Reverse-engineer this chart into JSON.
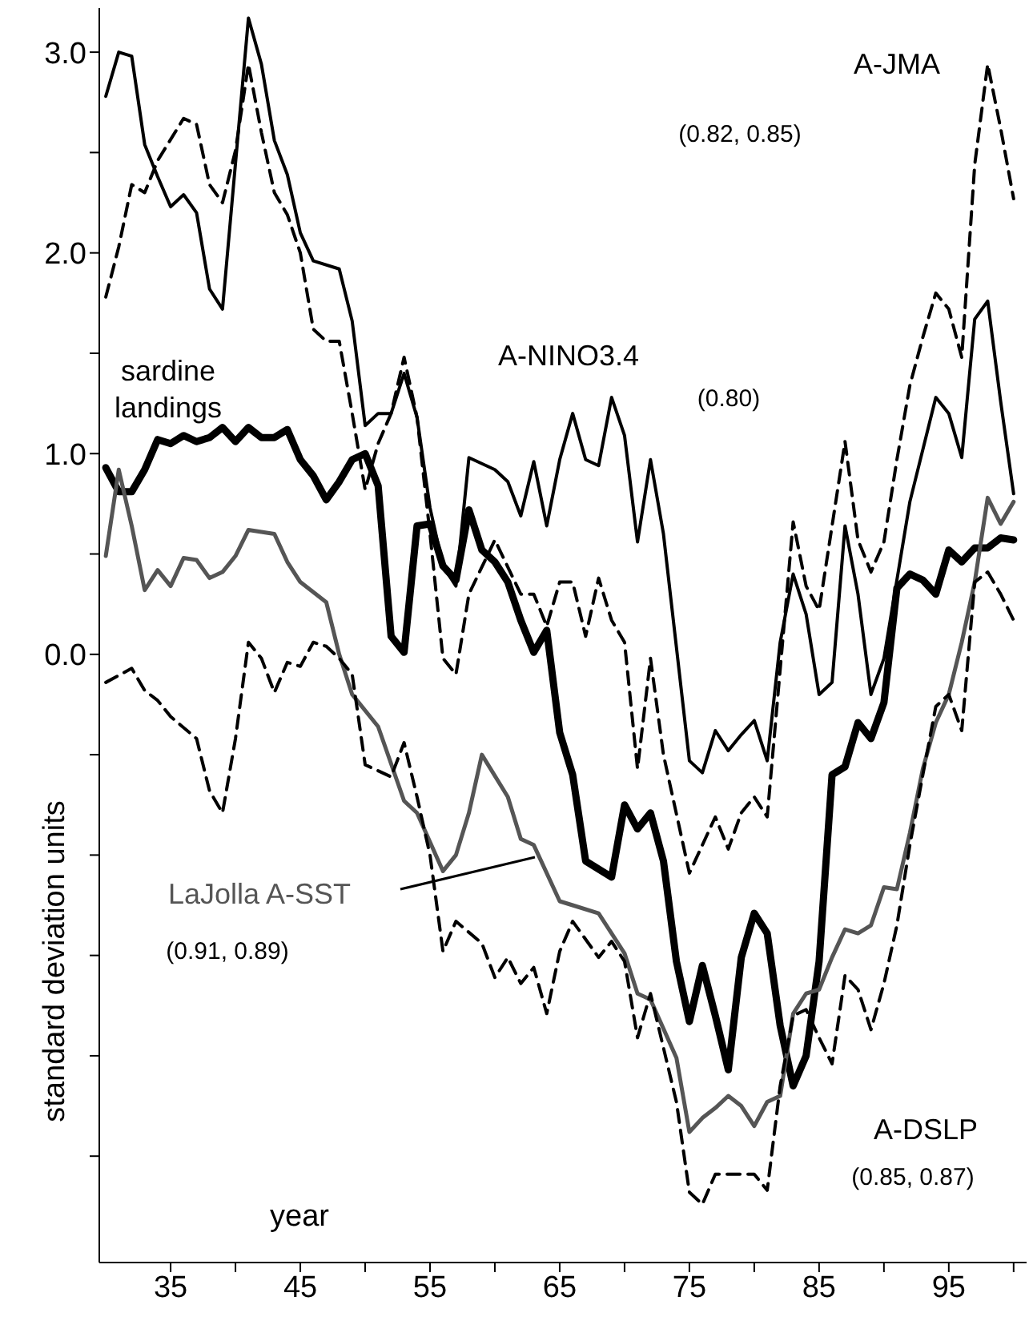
{
  "chart_data": {
    "type": "line",
    "xlabel": "year",
    "ylabel": "standard deviation units",
    "xlim": [
      29.5,
      101
    ],
    "ylim": [
      -3.03,
      3.22
    ],
    "xticks": [
      {
        "value": 35,
        "label": "35"
      },
      {
        "value": 40,
        "label": null
      },
      {
        "value": 45,
        "label": "45"
      },
      {
        "value": 50,
        "label": null
      },
      {
        "value": 55,
        "label": "55"
      },
      {
        "value": 60,
        "label": null
      },
      {
        "value": 65,
        "label": "65"
      },
      {
        "value": 70,
        "label": null
      },
      {
        "value": 75,
        "label": "75"
      },
      {
        "value": 80,
        "label": null
      },
      {
        "value": 85,
        "label": "85"
      },
      {
        "value": 90,
        "label": null
      },
      {
        "value": 95,
        "label": "95"
      },
      {
        "value": 100,
        "label": null
      }
    ],
    "yticks": [
      {
        "value": -2.5,
        "label": null
      },
      {
        "value": -2,
        "label": null
      },
      {
        "value": -1.5,
        "label": null
      },
      {
        "value": -1,
        "label": null
      },
      {
        "value": -0.5,
        "label": null
      },
      {
        "value": 0,
        "label": "0.0"
      },
      {
        "value": 0.5,
        "label": null
      },
      {
        "value": 1,
        "label": "1.0"
      },
      {
        "value": 1.5,
        "label": null
      },
      {
        "value": 2,
        "label": "2.0"
      },
      {
        "value": 2.5,
        "label": null
      },
      {
        "value": 3,
        "label": "3.0"
      }
    ],
    "legend": false,
    "marker": "none",
    "series": [
      {
        "name": "A-JMA",
        "color": "#000000",
        "line_style": "dashed",
        "x": [
          30,
          31,
          32,
          33,
          34,
          36,
          37,
          38,
          39,
          40,
          41,
          42,
          43,
          44,
          45,
          46,
          47,
          48,
          49,
          50,
          51,
          52,
          53,
          54,
          55,
          56,
          57,
          58,
          60,
          62,
          63,
          64,
          65,
          66,
          67,
          68,
          69,
          70,
          71,
          72,
          73,
          75,
          76,
          77,
          78,
          79,
          80,
          81,
          83,
          84,
          85,
          87,
          88,
          89,
          90,
          91,
          92,
          93,
          94,
          95,
          96,
          97,
          98,
          99,
          100
        ],
        "values": [
          1.78,
          2.03,
          2.34,
          2.3,
          2.46,
          2.67,
          2.64,
          2.34,
          2.25,
          2.51,
          2.94,
          2.6,
          2.3,
          2.19,
          2.0,
          1.62,
          1.56,
          1.56,
          1.2,
          0.82,
          1.05,
          1.2,
          1.48,
          1.18,
          0.6,
          -0.02,
          -0.1,
          0.3,
          0.57,
          0.3,
          0.3,
          0.14,
          0.36,
          0.36,
          0.09,
          0.38,
          0.17,
          0.06,
          -0.57,
          -0.02,
          -0.5,
          -1.09,
          -0.95,
          -0.81,
          -0.97,
          -0.79,
          -0.71,
          -0.81,
          0.66,
          0.34,
          0.22,
          1.06,
          0.57,
          0.41,
          0.56,
          0.97,
          1.34,
          1.58,
          1.8,
          1.72,
          1.48,
          2.44,
          2.94,
          2.62,
          2.27
        ]
      },
      {
        "name": "A-NINO3.4",
        "color": "#000000",
        "line_style": "solid",
        "x": [
          30,
          31,
          32,
          33,
          34,
          35,
          36,
          37,
          38,
          39,
          41,
          42,
          43,
          44,
          45,
          46,
          48,
          49,
          50,
          51,
          52,
          53,
          54,
          55,
          56,
          57,
          58,
          60,
          61,
          62,
          63,
          64,
          65,
          66,
          67,
          68,
          69,
          70,
          71,
          72,
          73,
          75,
          76,
          77,
          78,
          79,
          80,
          81,
          82,
          83,
          84,
          85,
          86,
          87,
          88,
          89,
          90,
          92,
          94,
          95,
          96,
          97,
          98,
          99,
          100
        ],
        "values": [
          2.78,
          3.0,
          2.98,
          2.54,
          2.38,
          2.23,
          2.29,
          2.2,
          1.82,
          1.72,
          3.17,
          2.94,
          2.56,
          2.39,
          2.1,
          1.96,
          1.92,
          1.66,
          1.14,
          1.2,
          1.2,
          1.4,
          1.18,
          0.73,
          0.44,
          0.34,
          0.98,
          0.92,
          0.86,
          0.69,
          0.96,
          0.64,
          0.97,
          1.2,
          0.97,
          0.94,
          1.28,
          1.09,
          0.56,
          0.97,
          0.6,
          -0.53,
          -0.59,
          -0.38,
          -0.48,
          -0.4,
          -0.33,
          -0.53,
          0.06,
          0.4,
          0.2,
          -0.2,
          -0.14,
          0.64,
          0.3,
          -0.2,
          -0.02,
          0.76,
          1.28,
          1.2,
          0.98,
          1.67,
          1.76,
          1.26,
          0.8
        ]
      },
      {
        "name": "sardine landings",
        "color": "#000000",
        "line_style": "solid",
        "x": [
          30,
          31,
          32,
          33,
          34,
          35,
          36,
          37,
          38,
          39,
          40,
          41,
          42,
          43,
          44,
          45,
          46,
          47,
          48,
          49,
          50,
          51,
          52,
          53,
          54,
          55,
          56,
          57,
          58,
          59,
          60,
          61,
          62,
          63,
          64,
          65,
          66,
          67,
          69,
          70,
          71,
          72,
          73,
          74,
          75,
          76,
          77,
          78,
          79,
          80,
          81,
          82,
          83,
          84,
          85,
          86,
          87,
          88,
          89,
          90,
          91,
          92,
          93,
          94,
          95,
          96,
          97,
          98,
          99,
          100
        ],
        "values": [
          0.93,
          0.81,
          0.81,
          0.92,
          1.07,
          1.05,
          1.09,
          1.06,
          1.08,
          1.13,
          1.06,
          1.13,
          1.08,
          1.08,
          1.12,
          0.97,
          0.89,
          0.77,
          0.86,
          0.97,
          1.0,
          0.84,
          0.09,
          0.01,
          0.64,
          0.65,
          0.44,
          0.37,
          0.72,
          0.52,
          0.46,
          0.36,
          0.17,
          0.01,
          0.12,
          -0.39,
          -0.6,
          -1.03,
          -1.11,
          -0.75,
          -0.87,
          -0.79,
          -1.03,
          -1.53,
          -1.83,
          -1.55,
          -1.8,
          -2.07,
          -1.51,
          -1.29,
          -1.39,
          -1.85,
          -2.15,
          -2.0,
          -1.53,
          -0.6,
          -0.56,
          -0.34,
          -0.42,
          -0.24,
          0.33,
          0.4,
          0.37,
          0.3,
          0.52,
          0.46,
          0.53,
          0.53,
          0.58,
          0.57
        ]
      },
      {
        "name": "LaJolla A-SST",
        "color": "#555555",
        "line_style": "solid",
        "x": [
          30,
          31,
          32,
          33,
          34,
          35,
          36,
          37,
          38,
          39,
          40,
          41,
          42,
          43,
          44,
          45,
          47,
          48,
          49,
          51,
          53,
          54,
          56,
          57,
          58,
          59,
          61,
          62,
          63,
          65,
          66,
          68,
          69,
          70,
          71,
          72,
          74,
          75,
          76,
          77,
          78,
          79,
          80,
          81,
          82,
          83,
          84,
          85,
          86,
          87,
          88,
          89,
          90,
          91,
          92,
          93,
          94,
          95,
          96,
          97,
          98,
          99,
          100
        ],
        "values": [
          0.49,
          0.92,
          0.64,
          0.32,
          0.42,
          0.34,
          0.48,
          0.47,
          0.38,
          0.41,
          0.49,
          0.62,
          0.61,
          0.6,
          0.46,
          0.36,
          0.26,
          0.0,
          -0.2,
          -0.36,
          -0.73,
          -0.79,
          -1.08,
          -1.0,
          -0.79,
          -0.5,
          -0.71,
          -0.92,
          -0.95,
          -1.23,
          -1.25,
          -1.29,
          -1.39,
          -1.49,
          -1.69,
          -1.72,
          -2.01,
          -2.38,
          -2.31,
          -2.26,
          -2.2,
          -2.25,
          -2.35,
          -2.23,
          -2.2,
          -1.79,
          -1.69,
          -1.67,
          -1.51,
          -1.37,
          -1.39,
          -1.35,
          -1.16,
          -1.17,
          -0.89,
          -0.57,
          -0.34,
          -0.2,
          0.06,
          0.36,
          0.78,
          0.65,
          0.76
        ]
      },
      {
        "name": "A-DSLP",
        "color": "#000000",
        "line_style": "dashed",
        "x": [
          30,
          32,
          33,
          34,
          35,
          37,
          38,
          39,
          40,
          41,
          42,
          43,
          44,
          45,
          46,
          47,
          48,
          49,
          50,
          52,
          53,
          54,
          55,
          56,
          57,
          59,
          60,
          61,
          62,
          63,
          64,
          65,
          66,
          68,
          69,
          70,
          71,
          72,
          74,
          75,
          76,
          77,
          78,
          79,
          80,
          81,
          82,
          83,
          84,
          85,
          86,
          87,
          88,
          89,
          90,
          91,
          92,
          93,
          94,
          95,
          96,
          97,
          98,
          99,
          100
        ],
        "values": [
          -0.14,
          -0.07,
          -0.18,
          -0.23,
          -0.31,
          -0.42,
          -0.68,
          -0.79,
          -0.42,
          0.06,
          -0.02,
          -0.19,
          -0.04,
          -0.06,
          0.06,
          0.04,
          -0.02,
          -0.1,
          -0.55,
          -0.61,
          -0.44,
          -0.71,
          -1.0,
          -1.48,
          -1.33,
          -1.44,
          -1.61,
          -1.51,
          -1.64,
          -1.56,
          -1.79,
          -1.48,
          -1.33,
          -1.51,
          -1.43,
          -1.53,
          -1.91,
          -1.69,
          -2.23,
          -2.68,
          -2.74,
          -2.59,
          -2.59,
          -2.59,
          -2.59,
          -2.67,
          -2.15,
          -1.8,
          -1.77,
          -1.91,
          -2.04,
          -1.6,
          -1.67,
          -1.87,
          -1.64,
          -1.35,
          -0.95,
          -0.6,
          -0.26,
          -0.2,
          -0.38,
          0.36,
          0.41,
          0.3,
          0.17
        ]
      }
    ],
    "annotations": [
      "(0.82, 0.85)",
      "(0.80)",
      "(0.91, 0.89)",
      "(0.85, 0.87)"
    ]
  }
}
